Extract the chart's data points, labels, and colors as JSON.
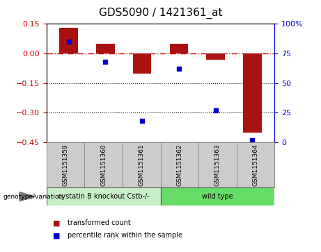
{
  "title": "GDS5090 / 1421361_at",
  "samples": [
    "GSM1151359",
    "GSM1151360",
    "GSM1151361",
    "GSM1151362",
    "GSM1151363",
    "GSM1151364"
  ],
  "red_bars": [
    0.13,
    0.05,
    -0.1,
    0.05,
    -0.03,
    -0.4
  ],
  "blue_dots": [
    85,
    68,
    18,
    62,
    27,
    2
  ],
  "ylim_left": [
    -0.45,
    0.15
  ],
  "ylim_right": [
    0,
    100
  ],
  "yticks_left": [
    0.15,
    0,
    -0.15,
    -0.3,
    -0.45
  ],
  "yticks_right": [
    100,
    75,
    50,
    25,
    0
  ],
  "group1_label": "cystatin B knockout Cstb-/-",
  "group2_label": "wild type",
  "group1_color": "#c8f0c8",
  "group2_color": "#66dd66",
  "bar_color": "#aa1111",
  "dot_color": "#0000cc",
  "hline_color": "#cc0000",
  "dotline_color": "#000000",
  "bg_plot": "#ffffff",
  "bg_sample": "#cccccc",
  "bar_width": 0.5,
  "legend_red": "transformed count",
  "legend_blue": "percentile rank within the sample",
  "ylabel_left_color": "#cc0000",
  "ylabel_right_color": "#0000cc",
  "title_fontsize": 11,
  "tick_fontsize": 8,
  "sample_fontsize": 6.5,
  "geno_fontsize": 7,
  "legend_fontsize": 7
}
